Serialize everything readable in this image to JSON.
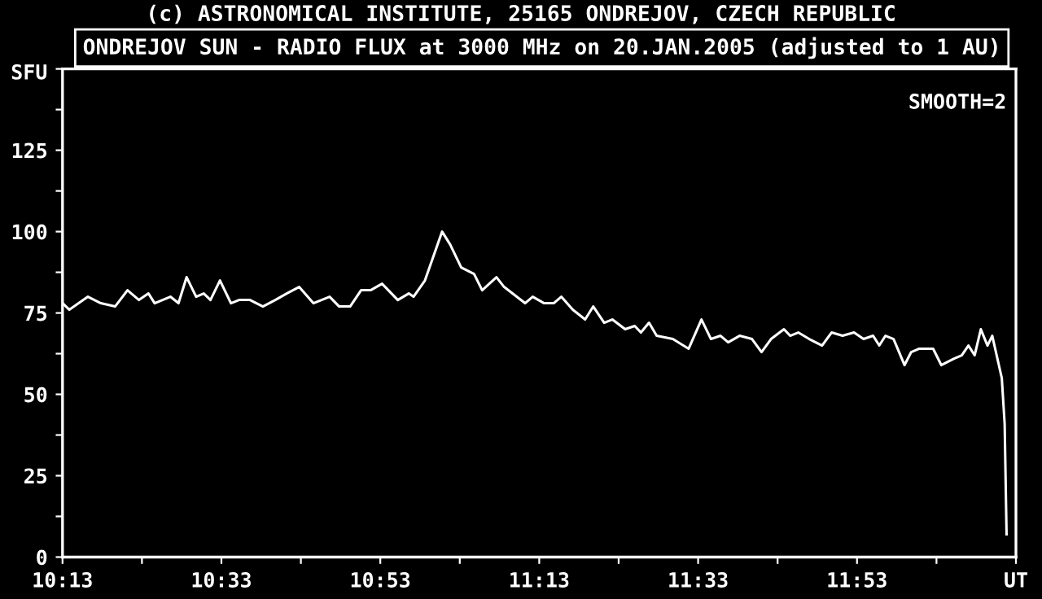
{
  "chart_data": {
    "type": "line",
    "title": "(c) ASTRONOMICAL INSTITUTE, 25165 ONDREJOV, CZECH REPUBLIC",
    "subtitle": "ONDREJOV SUN - RADIO FLUX at 3000 MHz on 20.JAN.2005 (adjusted to 1 AU)",
    "ylabel": "SFU",
    "annotations": [
      "SMOOTH=2"
    ],
    "series": [
      {
        "color": "#ffffff",
        "x": [
          10.217,
          10.231,
          10.27,
          10.297,
          10.327,
          10.353,
          10.377,
          10.397,
          10.41,
          10.443,
          10.46,
          10.477,
          10.497,
          10.513,
          10.527,
          10.547,
          10.57,
          10.587,
          10.61,
          10.637,
          10.663,
          10.687,
          10.713,
          10.743,
          10.777,
          10.797,
          10.82,
          10.843,
          10.863,
          10.887,
          10.92,
          10.943,
          10.953,
          10.977,
          11.013,
          11.03,
          11.053,
          11.08,
          11.097,
          11.127,
          11.143,
          11.187,
          11.203,
          11.227,
          11.247,
          11.263,
          11.287,
          11.313,
          11.33,
          11.353,
          11.37,
          11.397,
          11.417,
          11.43,
          11.447,
          11.463,
          11.497,
          11.53,
          11.557,
          11.577,
          11.597,
          11.613,
          11.637,
          11.663,
          11.683,
          11.703,
          11.73,
          11.743,
          11.76,
          11.783,
          11.81,
          11.83,
          11.853,
          11.877,
          11.897,
          11.917,
          11.93,
          11.943,
          11.96,
          11.983,
          11.997,
          12.013,
          12.043,
          12.06,
          12.087,
          12.103,
          12.117,
          12.13,
          12.143,
          12.157,
          12.167,
          12.187,
          12.193,
          12.197
        ],
        "values": [
          78,
          76,
          80,
          78,
          77,
          82,
          79,
          81,
          78,
          80,
          78,
          86,
          80,
          81,
          79,
          85,
          78,
          79,
          79,
          77,
          79,
          81,
          83,
          78,
          80,
          77,
          77,
          82,
          82,
          84,
          79,
          81,
          80,
          85,
          100,
          96,
          89,
          87,
          82,
          86,
          83,
          78,
          80,
          78,
          78,
          80,
          76,
          73,
          77,
          72,
          73,
          70,
          71,
          69,
          72,
          68,
          67,
          64,
          73,
          67,
          68,
          66,
          68,
          67,
          63,
          67,
          70,
          68,
          69,
          67,
          65,
          69,
          68,
          69,
          67,
          68,
          65,
          68,
          67,
          59,
          63,
          64,
          64,
          59,
          61,
          62,
          65,
          62,
          70,
          65,
          68,
          55,
          41,
          7
        ]
      }
    ],
    "xlim": [
      10.2167,
      12.2167
    ],
    "xticks": [
      {
        "value": 10.2167,
        "label": "10:13"
      },
      {
        "value": 10.3833,
        "label": null
      },
      {
        "value": 10.55,
        "label": "10:33"
      },
      {
        "value": 10.7167,
        "label": null
      },
      {
        "value": 10.8833,
        "label": "10:53"
      },
      {
        "value": 11.05,
        "label": null
      },
      {
        "value": 11.2167,
        "label": "11:13"
      },
      {
        "value": 11.3833,
        "label": null
      },
      {
        "value": 11.55,
        "label": "11:33"
      },
      {
        "value": 11.7167,
        "label": null
      },
      {
        "value": 11.8833,
        "label": "11:53"
      },
      {
        "value": 12.05,
        "label": null
      },
      {
        "value": 12.2167,
        "label": "UT"
      }
    ],
    "ylim": [
      0,
      150
    ],
    "yticks": [
      0,
      {
        "value": 12.5,
        "label": null
      },
      25,
      {
        "value": 37.5,
        "label": null
      },
      50,
      {
        "value": 62.5,
        "label": null
      },
      75,
      {
        "value": 87.5,
        "label": null
      },
      100,
      {
        "value": 112.5,
        "label": null
      },
      125,
      {
        "value": 137.5,
        "label": null
      },
      {
        "value": 150,
        "label": null
      }
    ],
    "grid": false,
    "legend": false,
    "marker": "none",
    "line_style": "solid"
  }
}
